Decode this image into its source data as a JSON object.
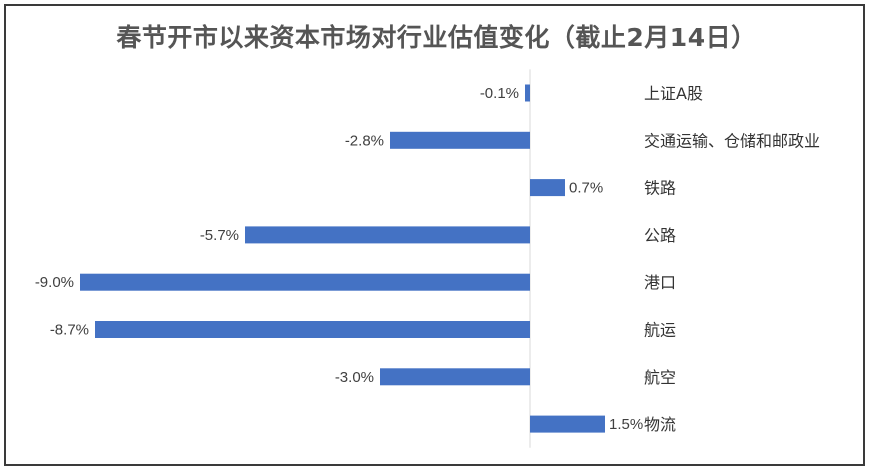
{
  "chart_data": {
    "type": "bar",
    "orientation": "horizontal",
    "title": "春节开市以来资本市场对行业估值变化（截止2月14日）",
    "categories": [
      "上证A股",
      "交通运输、仓储和邮政业",
      "铁路",
      "公路",
      "港口",
      "航运",
      "航空",
      "物流"
    ],
    "values": [
      -0.1,
      -2.8,
      0.7,
      -5.7,
      -9.0,
      -8.7,
      -3.0,
      1.5
    ],
    "value_labels": [
      "-0.1%",
      "-2.8%",
      "0.7%",
      "-5.7%",
      "-9.0%",
      "-8.7%",
      "-3.0%",
      "1.5%"
    ],
    "xlabel": "",
    "ylabel": "",
    "xlim": [
      -9.0,
      1.5
    ],
    "grid": false,
    "legend": "none",
    "bar_color": "#4472C4"
  }
}
